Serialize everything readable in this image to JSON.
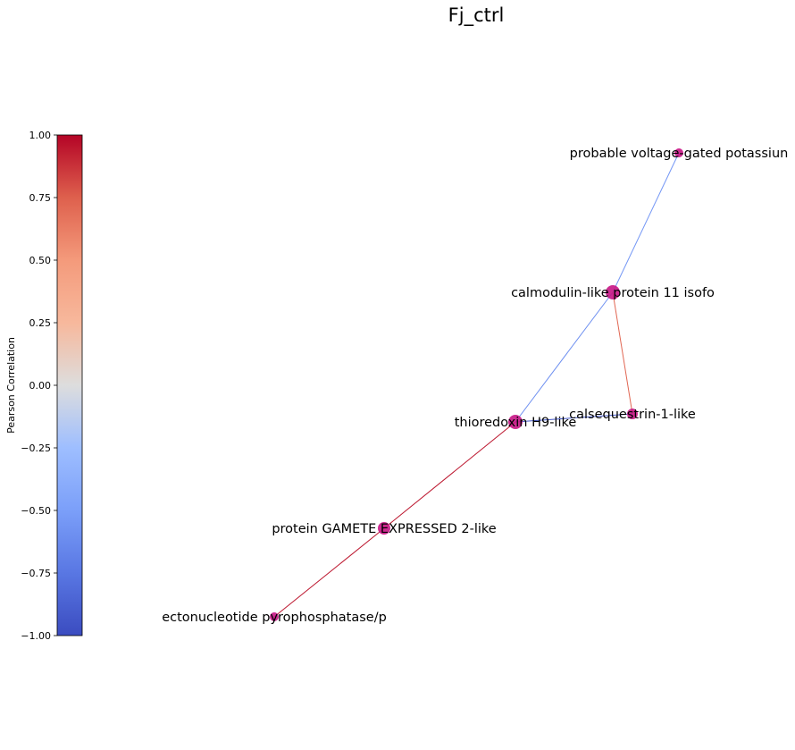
{
  "title": "Fj_ctrl",
  "colorbar": {
    "label": "Pearson Correlation",
    "min": -1.0,
    "max": 1.0,
    "ticks": [
      "1.00",
      "0.75",
      "0.50",
      "0.25",
      "0.00",
      "−0.25",
      "−0.50",
      "−0.75",
      "−1.00"
    ],
    "tick_values": [
      1.0,
      0.75,
      0.5,
      0.25,
      0.0,
      -0.25,
      -0.5,
      -0.75,
      -1.0
    ],
    "colormap": "coolwarm"
  },
  "node_color": "#c71585",
  "nodes": [
    {
      "id": "kcn",
      "label": "probable voltage-gated potassiun"
    },
    {
      "id": "cml",
      "label": "calmodulin-like protein 11 isofo"
    },
    {
      "id": "csq",
      "label": "calsequestrin-1-like"
    },
    {
      "id": "trx",
      "label": "thioredoxin H9-like"
    },
    {
      "id": "gex",
      "label": "protein GAMETE EXPRESSED 2-like"
    },
    {
      "id": "enpp",
      "label": "ectonucleotide pyrophosphatase/p"
    }
  ],
  "edges": [
    {
      "source": "kcn",
      "target": "cml",
      "correlation": -0.55
    },
    {
      "source": "cml",
      "target": "trx",
      "correlation": -0.6
    },
    {
      "source": "cml",
      "target": "csq",
      "correlation": 0.72
    },
    {
      "source": "trx",
      "target": "csq",
      "correlation": -0.95
    },
    {
      "source": "trx",
      "target": "gex",
      "correlation": 0.95
    },
    {
      "source": "gex",
      "target": "enpp",
      "correlation": 0.95
    }
  ]
}
